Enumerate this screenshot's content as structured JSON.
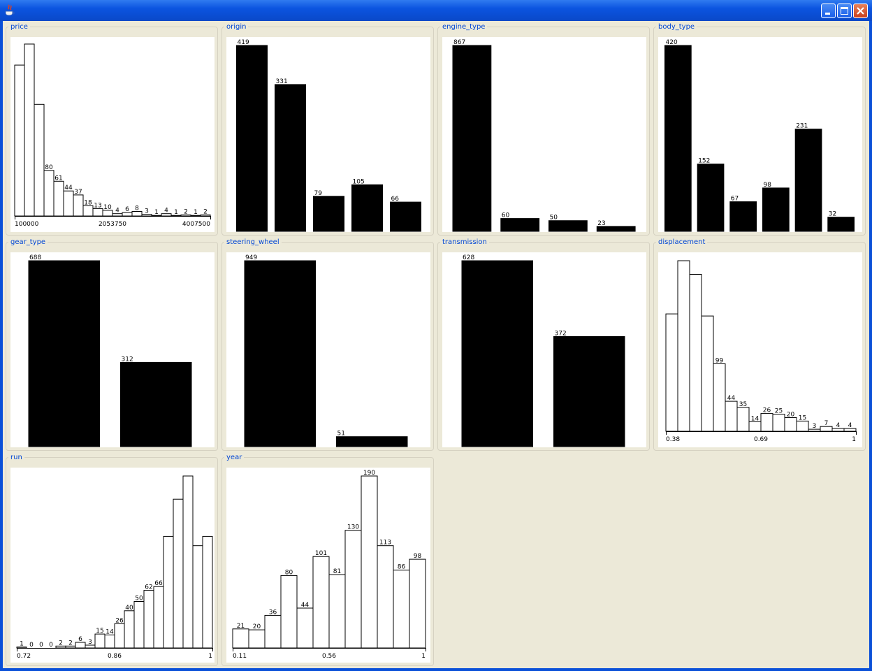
{
  "window": {
    "title": ""
  },
  "icons": {
    "app": "java-cup-icon",
    "minimize": "minimize-icon",
    "maximize": "maximize-icon",
    "close": "close-icon"
  },
  "colors": {
    "panel_title": "#0046d5",
    "bar_fill_histogram": "#ffffff",
    "bar_fill_categorical": "#000000",
    "background": "#ece9d8"
  },
  "chart_data": [
    {
      "name": "price",
      "title": "price",
      "type": "bar",
      "style": "histogram",
      "values": [
        265,
        302,
        196,
        80,
        61,
        44,
        37,
        18,
        13,
        10,
        4,
        6,
        8,
        3,
        1,
        4,
        1,
        2,
        1,
        2
      ],
      "labels": [
        "",
        "",
        "",
        "80",
        "61",
        "44",
        "37",
        "18",
        "13",
        "10",
        "4",
        "6",
        "8",
        "3",
        "1",
        "4",
        "1",
        "2",
        "1",
        "2"
      ],
      "x_ticks": [
        "100000",
        "2053750",
        "4007500"
      ]
    },
    {
      "name": "origin",
      "title": "origin",
      "type": "bar",
      "style": "categorical",
      "values": [
        419,
        331,
        79,
        105,
        66
      ],
      "labels": [
        "419",
        "331",
        "79",
        "105",
        "66"
      ]
    },
    {
      "name": "engine_type",
      "title": "engine_type",
      "type": "bar",
      "style": "categorical",
      "values": [
        867,
        60,
        50,
        23
      ],
      "labels": [
        "867",
        "60",
        "50",
        "23"
      ]
    },
    {
      "name": "body_type",
      "title": "body_type",
      "type": "bar",
      "style": "categorical",
      "values": [
        420,
        152,
        67,
        98,
        231,
        32
      ],
      "labels": [
        "420",
        "152",
        "67",
        "98",
        "231",
        "32"
      ]
    },
    {
      "name": "gear_type",
      "title": "gear_type",
      "type": "bar",
      "style": "categorical",
      "values": [
        688,
        312
      ],
      "labels": [
        "688",
        "312"
      ]
    },
    {
      "name": "steering_wheel",
      "title": "steering_wheel",
      "type": "bar",
      "style": "categorical",
      "values": [
        949,
        51
      ],
      "labels": [
        "949",
        "51"
      ]
    },
    {
      "name": "transmission",
      "title": "transmission",
      "type": "bar",
      "style": "categorical",
      "values": [
        628,
        372
      ],
      "labels": [
        "628",
        "372"
      ]
    },
    {
      "name": "displacement",
      "title": "displacement",
      "type": "bar",
      "style": "histogram",
      "values": [
        172,
        250,
        230,
        169,
        99,
        44,
        35,
        14,
        26,
        25,
        20,
        15,
        3,
        7,
        4,
        4
      ],
      "labels": [
        "",
        "",
        "",
        "",
        "99",
        "44",
        "35",
        "14",
        "26",
        "25",
        "20",
        "15",
        "3",
        "7",
        "4",
        "4"
      ],
      "x_ticks": [
        "0.38",
        "0.69",
        "1"
      ]
    },
    {
      "name": "run",
      "title": "run",
      "type": "bar",
      "style": "histogram",
      "values": [
        1,
        0,
        0,
        0,
        2,
        2,
        6,
        3,
        15,
        14,
        26,
        40,
        50,
        62,
        66,
        120,
        160,
        185,
        110,
        120
      ],
      "labels": [
        "1",
        "0",
        "0",
        "0",
        "2",
        "2",
        "6",
        "3",
        "15",
        "14",
        "26",
        "40",
        "50",
        "62",
        "66",
        "",
        "",
        "",
        "",
        ""
      ],
      "x_ticks": [
        "0.72",
        "0.86",
        "1"
      ]
    },
    {
      "name": "year",
      "title": "year",
      "type": "bar",
      "style": "histogram",
      "values": [
        21,
        20,
        36,
        80,
        44,
        101,
        81,
        130,
        190,
        113,
        86,
        98
      ],
      "labels": [
        "21",
        "20",
        "36",
        "80",
        "44",
        "101",
        "81",
        "130",
        "190",
        "113",
        "86",
        "98"
      ],
      "x_ticks": [
        "0.11",
        "0.56",
        "1"
      ]
    }
  ]
}
